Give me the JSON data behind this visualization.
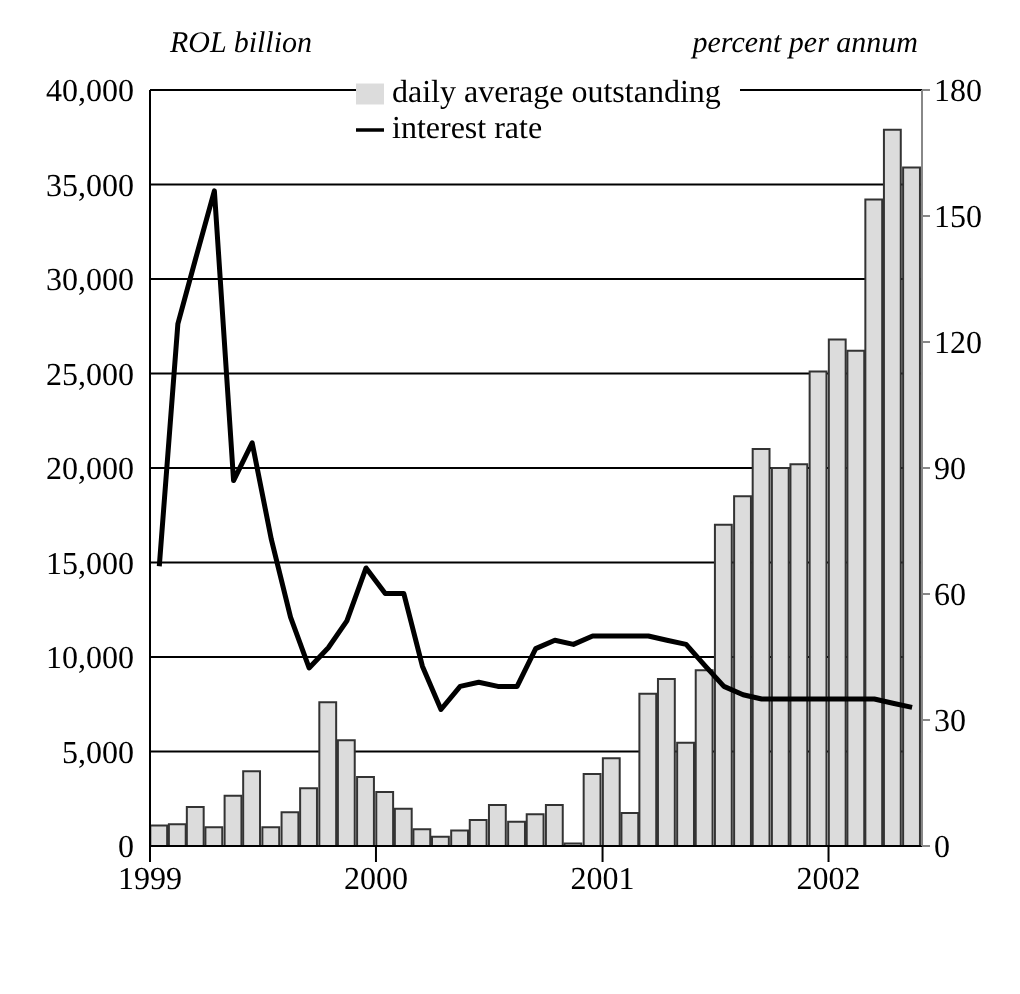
{
  "chart_data": {
    "type": "bar",
    "ylabel": "ROL billion",
    "y2label": "percent per annum",
    "x": [
      "1999-01-16",
      "1999-02-15",
      "1999-03-16",
      "1999-04-15",
      "1999-05-16",
      "1999-06-15",
      "1999-07-16",
      "1999-08-16",
      "1999-09-15",
      "1999-10-16",
      "1999-11-15",
      "1999-12-16",
      "2000-01-16",
      "2000-02-15",
      "2000-03-16",
      "2000-04-15",
      "2000-05-16",
      "2000-06-15",
      "2000-07-16",
      "2000-08-16",
      "2000-09-15",
      "2000-10-16",
      "2000-11-15",
      "2000-12-16",
      "2001-01-16",
      "2001-02-15",
      "2001-03-16",
      "2001-04-15",
      "2001-05-16",
      "2001-06-15",
      "2001-07-16",
      "2001-08-16",
      "2001-09-15",
      "2001-10-16",
      "2001-11-15",
      "2001-12-16",
      "2002-01-16",
      "2002-02-15",
      "2002-03-16",
      "2002-04-15",
      "2002-05-16"
    ],
    "series": [
      {
        "name": "daily average outstanding",
        "color": "#dcdcdc",
        "values": [
          1090,
          1150,
          2070,
          990,
          2660,
          3950,
          990,
          1780,
          3060,
          7600,
          5590,
          3650,
          2860,
          1970,
          890,
          490,
          820,
          1380,
          2170,
          1280,
          1680,
          2170,
          130,
          3810,
          4640,
          1750,
          8050,
          8840,
          5460,
          9300,
          17000,
          18500,
          21000,
          20000,
          20200,
          25100,
          26800,
          26200,
          34200,
          37900,
          35900
        ]
      },
      {
        "name": "interest rate",
        "type": "line",
        "axis": "y2",
        "color": "#000000",
        "values": [
          66.6,
          124.3,
          140,
          156,
          87,
          96,
          73,
          54.5,
          42.4,
          47.2,
          53.6,
          66.2,
          60.1,
          60.1,
          42.8,
          32.5,
          38,
          39,
          38,
          38,
          47,
          49,
          48,
          50,
          50,
          50,
          50,
          49,
          48,
          43,
          38,
          36,
          35,
          35,
          35,
          35,
          35,
          35,
          35,
          34,
          33
        ]
      }
    ],
    "xlim": [
      "1999-01-01",
      "2002-06-01"
    ],
    "xticks": [
      {
        "value": "1999-01-01",
        "label": "1999"
      },
      {
        "value": "2000-01-01",
        "label": "2000"
      },
      {
        "value": "2001-01-01",
        "label": "2001"
      },
      {
        "value": "2002-01-01",
        "label": "2002"
      }
    ],
    "ylim": [
      0,
      40000
    ],
    "yticks": [
      {
        "value": 0,
        "label": "0"
      },
      {
        "value": 5000,
        "label": "5,000"
      },
      {
        "value": 10000,
        "label": "10,000"
      },
      {
        "value": 15000,
        "label": "15,000"
      },
      {
        "value": 20000,
        "label": "20,000"
      },
      {
        "value": 25000,
        "label": "25,000"
      },
      {
        "value": 30000,
        "label": "30,000"
      },
      {
        "value": 35000,
        "label": "35,000"
      },
      {
        "value": 40000,
        "label": "40,000"
      }
    ],
    "y2lim": [
      0,
      180
    ],
    "y2ticks": [
      0,
      30,
      60,
      90,
      120,
      150,
      180
    ],
    "grid": "y",
    "legend": "top",
    "line_style": "solid"
  }
}
